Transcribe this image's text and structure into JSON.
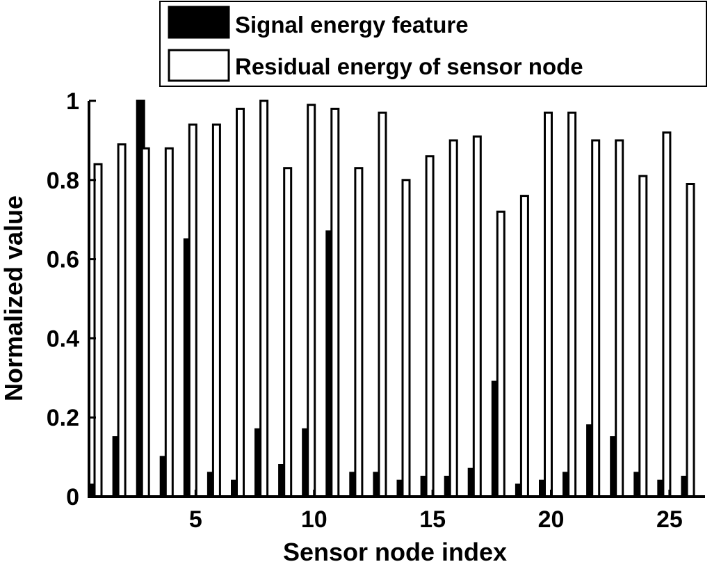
{
  "chart_data": {
    "type": "bar",
    "xlabel": "Sensor node index",
    "ylabel": "Normalized value",
    "xlim": [
      0.5,
      26.5
    ],
    "ylim": [
      0,
      1
    ],
    "xticks": [
      5,
      10,
      15,
      20,
      25
    ],
    "yticks": [
      0,
      0.2,
      0.4,
      0.6,
      0.8,
      1
    ],
    "ytick_labels": [
      "0",
      "0.2",
      "0.4",
      "0.6",
      "0.8",
      "1"
    ],
    "grid": false,
    "legend_position": "top-right",
    "categories": [
      1,
      2,
      3,
      4,
      5,
      6,
      7,
      8,
      9,
      10,
      11,
      12,
      13,
      14,
      15,
      16,
      17,
      18,
      19,
      20,
      21,
      22,
      23,
      24,
      25,
      26
    ],
    "series": [
      {
        "name": "Signal energy feature",
        "color": "#000000",
        "values": [
          0.03,
          0.15,
          1.0,
          0.1,
          0.65,
          0.06,
          0.04,
          0.17,
          0.08,
          0.17,
          0.67,
          0.06,
          0.06,
          0.04,
          0.05,
          0.05,
          0.07,
          0.29,
          0.03,
          0.04,
          0.06,
          0.18,
          0.15,
          0.06,
          0.04,
          0.05
        ]
      },
      {
        "name": "Residual energy of sensor node",
        "color": "#ffffff",
        "values": [
          0.84,
          0.89,
          0.88,
          0.88,
          0.94,
          0.94,
          0.98,
          1.0,
          0.83,
          0.99,
          0.98,
          0.83,
          0.97,
          0.8,
          0.86,
          0.9,
          0.91,
          0.72,
          0.76,
          0.97,
          0.97,
          0.9,
          0.9,
          0.81,
          0.92,
          0.79
        ]
      }
    ]
  }
}
